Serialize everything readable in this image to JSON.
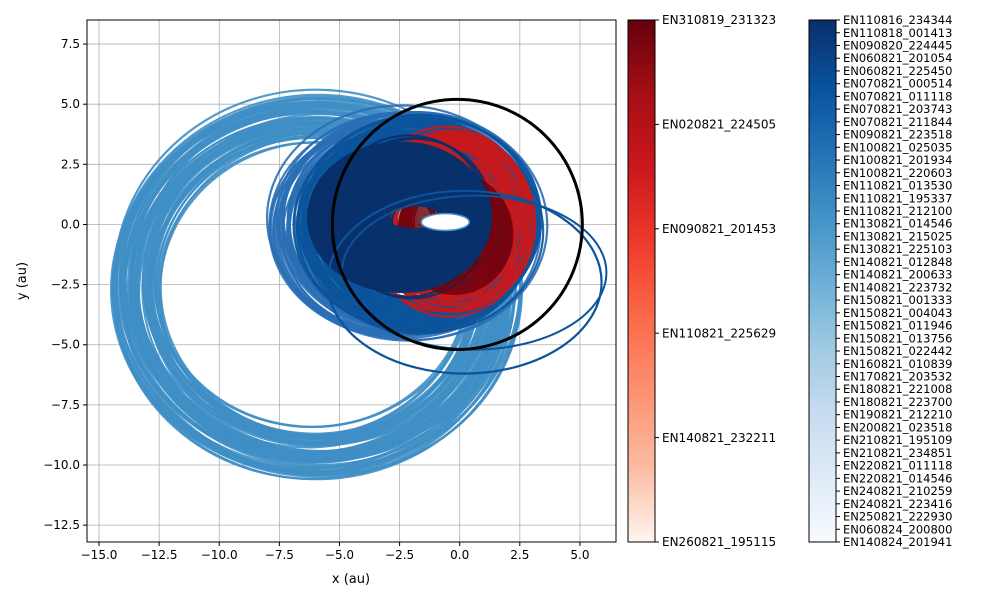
{
  "chart_data": {
    "type": "line",
    "title": "",
    "xlabel": "x (au)",
    "ylabel": "y (au)",
    "xlim": [
      -15.5,
      6.5
    ],
    "ylim": [
      -13.2,
      8.5
    ],
    "xticks": [
      -15.0,
      -12.5,
      -10.0,
      -7.5,
      -5.0,
      -2.5,
      0.0,
      2.5,
      5.0
    ],
    "xtick_labels": [
      "−15.0",
      "−12.5",
      "−10.0",
      "−7.5",
      "−5.0",
      "−2.5",
      "0.0",
      "2.5",
      "5.0"
    ],
    "yticks": [
      -12.5,
      -10.0,
      -7.5,
      -5.0,
      -2.5,
      0.0,
      2.5,
      5.0,
      7.5
    ],
    "ytick_labels": [
      "−12.5",
      "−10.0",
      "−7.5",
      "−5.0",
      "−2.5",
      "0.0",
      "2.5",
      "5.0",
      "7.5"
    ],
    "grid": true,
    "reference_circle": {
      "center": [
        -0.1,
        0.0
      ],
      "radius": 5.2,
      "color": "#000000"
    },
    "orbit_bands": [
      {
        "group": "light-blue",
        "color": "#3f8fc5",
        "cx": -6.0,
        "cy": -2.5,
        "rx": [
          6.5,
          8.5
        ],
        "ry": [
          6.0,
          8.0
        ]
      },
      {
        "group": "mid-blue",
        "color": "#2a6fb5",
        "cx": -2.2,
        "cy": 0.0,
        "rx": [
          3.5,
          5.6
        ],
        "ry": [
          3.0,
          4.8
        ]
      },
      {
        "group": "dark-blue",
        "color": "#0b539b",
        "cx": -1.8,
        "cy": 0.0,
        "rx": [
          3.0,
          5.0
        ],
        "ry": [
          2.8,
          4.5
        ]
      },
      {
        "group": "red",
        "color": "#c6191d",
        "cx": -0.5,
        "cy": 0.2,
        "rx": [
          1.5,
          3.5
        ],
        "ry": [
          1.2,
          4.0
        ]
      },
      {
        "group": "navy",
        "color": "#08306b",
        "cx": -1.9,
        "cy": 0.3,
        "rx": [
          1.0,
          3.2
        ],
        "ry": [
          0.8,
          3.2
        ]
      }
    ],
    "colorbars": [
      {
        "cmap": "Reds",
        "tick_labels": [
          "EN310819_231323",
          "EN020821_224505",
          "EN090821_201453",
          "EN110821_225629",
          "EN140821_232211",
          "EN260821_195115"
        ],
        "colors": [
          "#fff5f0",
          "#fcbba1",
          "#fc9272",
          "#fb6a4a",
          "#ef3b2c",
          "#cb181d",
          "#a50f15",
          "#67000d"
        ]
      },
      {
        "cmap": "Blues",
        "tick_labels": [
          "EN110816_234344",
          "EN110818_001413",
          "EN090820_224445",
          "EN060821_201054",
          "EN060821_225450",
          "EN070821_000514",
          "EN070821_011118",
          "EN070821_203743",
          "EN070821_211844",
          "EN090821_223518",
          "EN100821_025035",
          "EN100821_201934",
          "EN100821_220603",
          "EN110821_013530",
          "EN110821_195337",
          "EN110821_212100",
          "EN130821_014546",
          "EN130821_215025",
          "EN130821_225103",
          "EN140821_012848",
          "EN140821_200633",
          "EN140821_223732",
          "EN150821_001333",
          "EN150821_004043",
          "EN150821_011946",
          "EN150821_013756",
          "EN150821_022442",
          "EN160821_010839",
          "EN170821_203532",
          "EN180821_221008",
          "EN180821_223700",
          "EN190821_212210",
          "EN200821_023518",
          "EN210821_195109",
          "EN210821_234851",
          "EN220821_011118",
          "EN220821_014546",
          "EN240821_210259",
          "EN240821_223416",
          "EN250821_222930",
          "EN060824_200800",
          "EN140824_201941"
        ],
        "colors": [
          "#f7fbff",
          "#deebf7",
          "#c6dbef",
          "#9ecae1",
          "#6baed6",
          "#4292c6",
          "#2171b5",
          "#08519c",
          "#08306b"
        ]
      }
    ]
  }
}
